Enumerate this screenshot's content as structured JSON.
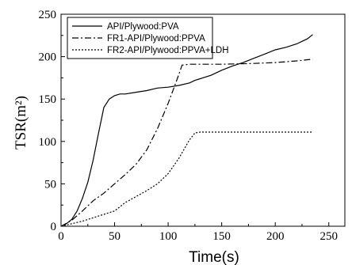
{
  "chart_data": {
    "type": "line",
    "xlabel": "Time(s)",
    "ylabel": "TSR(m²)",
    "xlim": [
      0,
      265
    ],
    "ylim": [
      0,
      250
    ],
    "xticks": [
      0,
      50,
      100,
      150,
      200,
      250
    ],
    "yticks": [
      0,
      50,
      100,
      150,
      200,
      250
    ],
    "x_tick_labels": [
      "0",
      "50",
      "100",
      "150",
      "200",
      "250"
    ],
    "y_tick_labels": [
      "0",
      "50",
      "100",
      "150",
      "200",
      "250"
    ],
    "legend_position": "top-left",
    "grid": false,
    "series": [
      {
        "name": "API/Plywood:PVA",
        "style": "solid",
        "color": "#000000",
        "x": [
          0,
          5,
          10,
          15,
          20,
          25,
          30,
          35,
          40,
          45,
          50,
          55,
          60,
          70,
          80,
          90,
          100,
          110,
          120,
          125,
          130,
          140,
          150,
          160,
          170,
          180,
          190,
          200,
          210,
          220,
          230,
          235
        ],
        "y": [
          0,
          3,
          8,
          18,
          33,
          52,
          78,
          110,
          140,
          150,
          154,
          156,
          156,
          158,
          160,
          163,
          164,
          166,
          169,
          172,
          174,
          178,
          184,
          189,
          193,
          198,
          203,
          208,
          211,
          215,
          221,
          226
        ]
      },
      {
        "name": "FR1-API/Plywood:PPVA",
        "style": "dashdot",
        "color": "#000000",
        "x": [
          0,
          10,
          20,
          30,
          40,
          50,
          60,
          70,
          80,
          90,
          100,
          108,
          113,
          120,
          150,
          180,
          200,
          220,
          235
        ],
        "y": [
          0,
          7,
          18,
          30,
          39,
          50,
          61,
          73,
          90,
          115,
          145,
          172,
          190,
          191,
          191,
          192,
          193,
          195,
          197
        ]
      },
      {
        "name": "FR2-API/Plywood:PPVA+LDH",
        "style": "dotted",
        "color": "#000000",
        "x": [
          0,
          10,
          20,
          30,
          40,
          50,
          60,
          70,
          80,
          90,
          100,
          110,
          120,
          125,
          130,
          150,
          200,
          235
        ],
        "y": [
          0,
          3,
          6,
          10,
          14,
          18,
          28,
          35,
          42,
          50,
          62,
          80,
          102,
          110,
          111,
          111,
          111,
          111
        ]
      }
    ]
  }
}
